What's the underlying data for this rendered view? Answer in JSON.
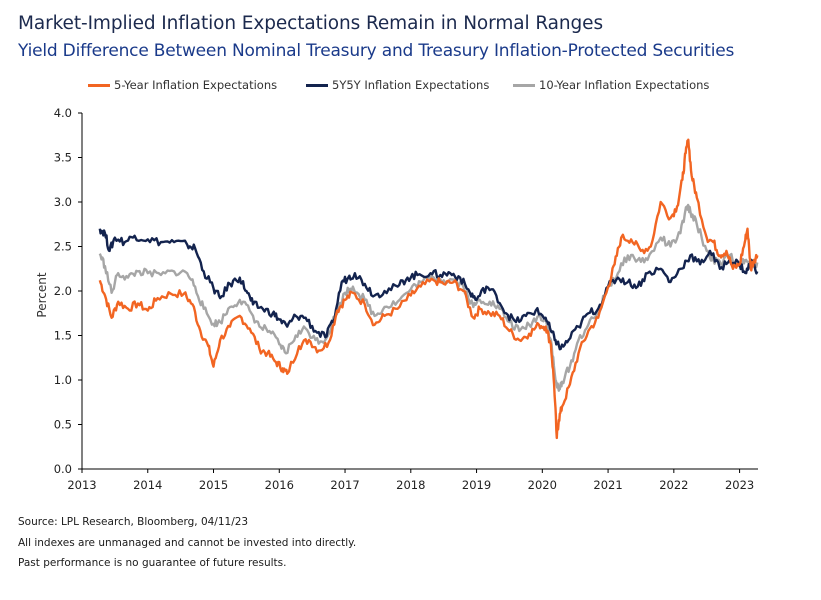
{
  "title": "Market-Implied Inflation Expectations Remain in Normal Ranges",
  "subtitle": "Yield Difference Between Nominal Treasury and Treasury Inflation-Protected Securities",
  "notes": [
    "Source: LPL Research, Bloomberg, 04/11/23",
    "All indexes are unmanaged and cannot be invested into directly.",
    "Past performance is no guarantee of future results."
  ],
  "colors": {
    "five_year": "#f26522",
    "five_y_five_y": "#13234e",
    "ten_year": "#a6a6a6",
    "axis": "#000000"
  },
  "chart_data": {
    "type": "line",
    "ylabel": "Percent",
    "xlabel": "",
    "ylim": [
      0,
      4
    ],
    "xlim": [
      2013,
      2023.28
    ],
    "yticks": [
      "0.0",
      "0.5",
      "1.0",
      "1.5",
      "2.0",
      "2.5",
      "3.0",
      "3.5",
      "4.0"
    ],
    "xticks": [
      "2013",
      "2014",
      "2015",
      "2016",
      "2017",
      "2018",
      "2019",
      "2020",
      "2021",
      "2022",
      "2023"
    ],
    "grid": false,
    "legend_position": "top",
    "series": [
      {
        "name": "5-Year Inflation Expectations",
        "key": "five_year",
        "points": [
          [
            2013.27,
            2.12
          ],
          [
            2013.35,
            1.95
          ],
          [
            2013.45,
            1.7
          ],
          [
            2013.55,
            1.88
          ],
          [
            2013.7,
            1.8
          ],
          [
            2013.85,
            1.86
          ],
          [
            2014.0,
            1.78
          ],
          [
            2014.15,
            1.92
          ],
          [
            2014.35,
            1.97
          ],
          [
            2014.55,
            1.97
          ],
          [
            2014.68,
            1.85
          ],
          [
            2014.8,
            1.55
          ],
          [
            2014.92,
            1.38
          ],
          [
            2015.0,
            1.15
          ],
          [
            2015.1,
            1.45
          ],
          [
            2015.25,
            1.6
          ],
          [
            2015.4,
            1.72
          ],
          [
            2015.55,
            1.58
          ],
          [
            2015.7,
            1.35
          ],
          [
            2015.82,
            1.3
          ],
          [
            2015.95,
            1.2
          ],
          [
            2016.05,
            1.13
          ],
          [
            2016.12,
            1.07
          ],
          [
            2016.3,
            1.38
          ],
          [
            2016.45,
            1.45
          ],
          [
            2016.6,
            1.33
          ],
          [
            2016.75,
            1.42
          ],
          [
            2016.88,
            1.78
          ],
          [
            2017.0,
            1.9
          ],
          [
            2017.12,
            1.98
          ],
          [
            2017.3,
            1.85
          ],
          [
            2017.45,
            1.62
          ],
          [
            2017.6,
            1.72
          ],
          [
            2017.8,
            1.8
          ],
          [
            2018.0,
            1.95
          ],
          [
            2018.15,
            2.05
          ],
          [
            2018.35,
            2.12
          ],
          [
            2018.5,
            2.08
          ],
          [
            2018.65,
            2.1
          ],
          [
            2018.8,
            2.0
          ],
          [
            2018.95,
            1.7
          ],
          [
            2019.05,
            1.8
          ],
          [
            2019.2,
            1.75
          ],
          [
            2019.35,
            1.72
          ],
          [
            2019.5,
            1.55
          ],
          [
            2019.65,
            1.45
          ],
          [
            2019.8,
            1.52
          ],
          [
            2019.95,
            1.62
          ],
          [
            2020.05,
            1.6
          ],
          [
            2020.13,
            1.4
          ],
          [
            2020.18,
            0.95
          ],
          [
            2020.22,
            0.35
          ],
          [
            2020.25,
            0.55
          ],
          [
            2020.3,
            0.7
          ],
          [
            2020.42,
            0.95
          ],
          [
            2020.55,
            1.3
          ],
          [
            2020.7,
            1.55
          ],
          [
            2020.85,
            1.7
          ],
          [
            2021.0,
            2.05
          ],
          [
            2021.1,
            2.3
          ],
          [
            2021.2,
            2.6
          ],
          [
            2021.35,
            2.58
          ],
          [
            2021.5,
            2.45
          ],
          [
            2021.65,
            2.5
          ],
          [
            2021.8,
            3.0
          ],
          [
            2021.95,
            2.82
          ],
          [
            2022.05,
            2.95
          ],
          [
            2022.13,
            3.25
          ],
          [
            2022.18,
            3.55
          ],
          [
            2022.22,
            3.7
          ],
          [
            2022.27,
            3.3
          ],
          [
            2022.35,
            3.05
          ],
          [
            2022.5,
            2.6
          ],
          [
            2022.6,
            2.55
          ],
          [
            2022.7,
            2.4
          ],
          [
            2022.8,
            2.45
          ],
          [
            2022.9,
            2.25
          ],
          [
            2023.0,
            2.3
          ],
          [
            2023.08,
            2.55
          ],
          [
            2023.12,
            2.7
          ],
          [
            2023.17,
            2.25
          ],
          [
            2023.22,
            2.35
          ],
          [
            2023.27,
            2.4
          ]
        ]
      },
      {
        "name": "5Y5Y Inflation Expectations",
        "key": "five_y_five_y",
        "points": [
          [
            2013.27,
            2.7
          ],
          [
            2013.35,
            2.65
          ],
          [
            2013.42,
            2.45
          ],
          [
            2013.5,
            2.6
          ],
          [
            2013.65,
            2.55
          ],
          [
            2013.8,
            2.62
          ],
          [
            2014.0,
            2.58
          ],
          [
            2014.2,
            2.55
          ],
          [
            2014.4,
            2.55
          ],
          [
            2014.6,
            2.52
          ],
          [
            2014.72,
            2.48
          ],
          [
            2014.85,
            2.22
          ],
          [
            2015.0,
            2.03
          ],
          [
            2015.1,
            1.92
          ],
          [
            2015.25,
            2.08
          ],
          [
            2015.4,
            2.15
          ],
          [
            2015.5,
            2.0
          ],
          [
            2015.6,
            1.85
          ],
          [
            2015.75,
            1.8
          ],
          [
            2015.9,
            1.75
          ],
          [
            2016.0,
            1.68
          ],
          [
            2016.12,
            1.6
          ],
          [
            2016.25,
            1.72
          ],
          [
            2016.4,
            1.7
          ],
          [
            2016.55,
            1.55
          ],
          [
            2016.7,
            1.48
          ],
          [
            2016.82,
            1.65
          ],
          [
            2016.95,
            2.1
          ],
          [
            2017.05,
            2.15
          ],
          [
            2017.15,
            2.2
          ],
          [
            2017.3,
            2.08
          ],
          [
            2017.45,
            1.95
          ],
          [
            2017.6,
            2.0
          ],
          [
            2017.8,
            2.05
          ],
          [
            2017.95,
            2.15
          ],
          [
            2018.1,
            2.18
          ],
          [
            2018.3,
            2.2
          ],
          [
            2018.45,
            2.18
          ],
          [
            2018.6,
            2.2
          ],
          [
            2018.75,
            2.15
          ],
          [
            2018.9,
            1.98
          ],
          [
            2019.0,
            1.9
          ],
          [
            2019.15,
            2.05
          ],
          [
            2019.3,
            1.95
          ],
          [
            2019.45,
            1.75
          ],
          [
            2019.6,
            1.65
          ],
          [
            2019.75,
            1.72
          ],
          [
            2019.9,
            1.78
          ],
          [
            2020.05,
            1.7
          ],
          [
            2020.13,
            1.55
          ],
          [
            2020.2,
            1.45
          ],
          [
            2020.28,
            1.35
          ],
          [
            2020.4,
            1.45
          ],
          [
            2020.55,
            1.6
          ],
          [
            2020.7,
            1.75
          ],
          [
            2020.85,
            1.8
          ],
          [
            2021.0,
            2.05
          ],
          [
            2021.15,
            2.15
          ],
          [
            2021.3,
            2.1
          ],
          [
            2021.45,
            2.05
          ],
          [
            2021.6,
            2.2
          ],
          [
            2021.8,
            2.25
          ],
          [
            2021.95,
            2.1
          ],
          [
            2022.1,
            2.25
          ],
          [
            2022.25,
            2.4
          ],
          [
            2022.4,
            2.3
          ],
          [
            2022.55,
            2.45
          ],
          [
            2022.7,
            2.25
          ],
          [
            2022.85,
            2.35
          ],
          [
            2023.0,
            2.3
          ],
          [
            2023.1,
            2.2
          ],
          [
            2023.18,
            2.35
          ],
          [
            2023.27,
            2.22
          ]
        ]
      },
      {
        "name": "10-Year Inflation Expectations",
        "key": "ten_year",
        "points": [
          [
            2013.27,
            2.42
          ],
          [
            2013.35,
            2.28
          ],
          [
            2013.45,
            1.98
          ],
          [
            2013.55,
            2.2
          ],
          [
            2013.7,
            2.15
          ],
          [
            2013.85,
            2.22
          ],
          [
            2014.0,
            2.2
          ],
          [
            2014.2,
            2.18
          ],
          [
            2014.4,
            2.22
          ],
          [
            2014.6,
            2.2
          ],
          [
            2014.72,
            2.05
          ],
          [
            2014.85,
            1.8
          ],
          [
            2015.0,
            1.63
          ],
          [
            2015.1,
            1.65
          ],
          [
            2015.25,
            1.82
          ],
          [
            2015.4,
            1.9
          ],
          [
            2015.55,
            1.78
          ],
          [
            2015.7,
            1.6
          ],
          [
            2015.85,
            1.55
          ],
          [
            2016.0,
            1.4
          ],
          [
            2016.1,
            1.3
          ],
          [
            2016.25,
            1.5
          ],
          [
            2016.4,
            1.58
          ],
          [
            2016.55,
            1.45
          ],
          [
            2016.7,
            1.45
          ],
          [
            2016.85,
            1.72
          ],
          [
            2017.0,
            1.98
          ],
          [
            2017.12,
            2.05
          ],
          [
            2017.3,
            1.9
          ],
          [
            2017.45,
            1.72
          ],
          [
            2017.6,
            1.82
          ],
          [
            2017.8,
            1.88
          ],
          [
            2018.0,
            2.02
          ],
          [
            2018.15,
            2.1
          ],
          [
            2018.35,
            2.15
          ],
          [
            2018.5,
            2.12
          ],
          [
            2018.65,
            2.13
          ],
          [
            2018.8,
            2.05
          ],
          [
            2018.95,
            1.82
          ],
          [
            2019.05,
            1.9
          ],
          [
            2019.2,
            1.88
          ],
          [
            2019.35,
            1.8
          ],
          [
            2019.5,
            1.65
          ],
          [
            2019.65,
            1.55
          ],
          [
            2019.8,
            1.62
          ],
          [
            2019.95,
            1.72
          ],
          [
            2020.05,
            1.68
          ],
          [
            2020.13,
            1.45
          ],
          [
            2020.2,
            1.0
          ],
          [
            2020.25,
            0.88
          ],
          [
            2020.3,
            0.98
          ],
          [
            2020.42,
            1.15
          ],
          [
            2020.55,
            1.45
          ],
          [
            2020.7,
            1.62
          ],
          [
            2020.85,
            1.75
          ],
          [
            2021.0,
            2.05
          ],
          [
            2021.15,
            2.2
          ],
          [
            2021.3,
            2.4
          ],
          [
            2021.45,
            2.35
          ],
          [
            2021.6,
            2.35
          ],
          [
            2021.8,
            2.6
          ],
          [
            2021.95,
            2.5
          ],
          [
            2022.1,
            2.65
          ],
          [
            2022.2,
            2.95
          ],
          [
            2022.25,
            2.9
          ],
          [
            2022.35,
            2.75
          ],
          [
            2022.5,
            2.45
          ],
          [
            2022.6,
            2.35
          ],
          [
            2022.72,
            2.3
          ],
          [
            2022.85,
            2.4
          ],
          [
            2023.0,
            2.28
          ],
          [
            2023.1,
            2.35
          ],
          [
            2023.17,
            2.25
          ],
          [
            2023.27,
            2.32
          ]
        ]
      }
    ]
  }
}
